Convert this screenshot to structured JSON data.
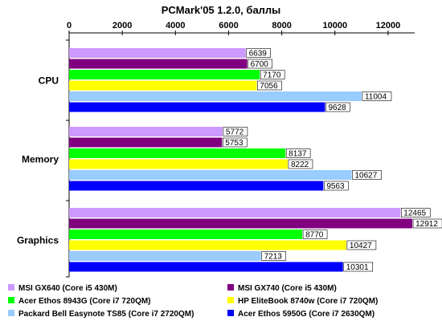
{
  "chart_data": {
    "type": "bar",
    "orientation": "horizontal",
    "title": "PCMark'05 1.2.0, баллы",
    "xlabel": "",
    "ylabel": "",
    "xlim": [
      0,
      13000
    ],
    "x_ticks": [
      0,
      2000,
      4000,
      6000,
      8000,
      10000,
      12000
    ],
    "axis_position": "top",
    "grid": false,
    "legend_position": "bottom",
    "categories": [
      "CPU",
      "Memory",
      "Graphics"
    ],
    "series": [
      {
        "name": "MSI GX640 (Core i5 430M)",
        "color": "#cc99ff",
        "values": [
          6639,
          5772,
          12465
        ]
      },
      {
        "name": "MSI GX740 (Core i5 430M)",
        "color": "#800080",
        "values": [
          6700,
          5753,
          12912
        ]
      },
      {
        "name": "Acer Ethos 8943G (Core i7 720QM)",
        "color": "#00ff00",
        "values": [
          7170,
          8137,
          8770
        ]
      },
      {
        "name": "HP EliteBook 8740w (Core i7 720QM)",
        "color": "#ffff00",
        "values": [
          7056,
          8222,
          10427
        ]
      },
      {
        "name": "Packard Bell Easynote TS85 (Core i7 2720QM)",
        "color": "#99ccff",
        "values": [
          11004,
          10627,
          7213
        ]
      },
      {
        "name": "Acer Ethos 5950G (Core i7 2630QM)",
        "color": "#0000ff",
        "values": [
          9628,
          9563,
          10301
        ]
      }
    ]
  }
}
